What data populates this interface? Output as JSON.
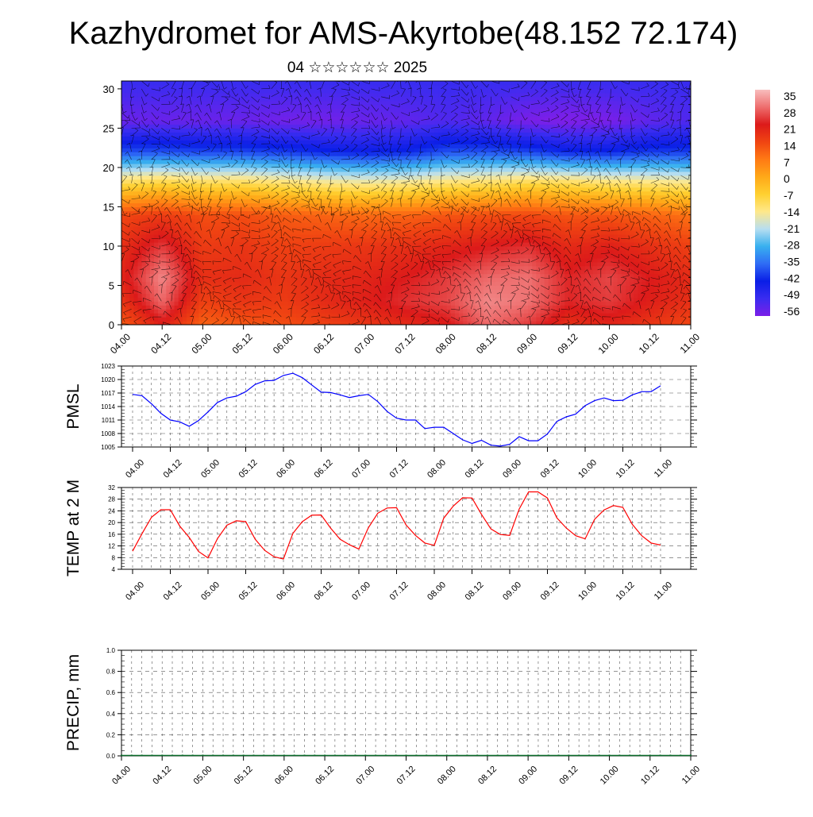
{
  "header": {
    "title": "Kazhydromet for AMS-Akyrtobe(48.152 72.174)",
    "subtitle": "04 ☆☆☆☆☆☆ 2025"
  },
  "chart_data": [
    {
      "type": "heatmap",
      "name": "vertical-section",
      "title": "Kazhydromet for AMS-Akyrtobe(48.152 72.174)",
      "subtitle": "04 ☆☆☆☆☆☆ 2025",
      "x_ticks": [
        "04.00",
        "04.12",
        "05.00",
        "05.12",
        "06.00",
        "06.12",
        "07.00",
        "07.12",
        "08.00",
        "08.12",
        "09.00",
        "09.12",
        "10.00",
        "10.12",
        "11.00"
      ],
      "y_ticks": [
        0,
        5,
        10,
        15,
        20,
        25,
        30
      ],
      "ylim": [
        0,
        31
      ],
      "colorbar": {
        "labels": [
          "35",
          "28",
          "21",
          "14",
          "7",
          "0",
          "-7",
          "-14",
          "-21",
          "-28",
          "-35",
          "-42",
          "-49",
          "-56"
        ],
        "range": [
          -60,
          38
        ],
        "colors": [
          "#7b1fe8",
          "#3a2cf0",
          "#0a1ee6",
          "#2f6cf5",
          "#38b0ef",
          "#b7def0",
          "#ffe88a",
          "#ffd030",
          "#ffa818",
          "#ff7a14",
          "#f04412",
          "#dc1a1a",
          "#ee6e6e",
          "#f8bdbd"
        ]
      },
      "columns": [
        {
          "x": 0.0,
          "p": [
            12,
            18,
            21,
            19,
            15,
            -10,
            -40,
            -58,
            -52
          ]
        },
        {
          "x": 0.5,
          "p": [
            22,
            30,
            33,
            26,
            17,
            -8,
            -40,
            -58,
            -52
          ]
        },
        {
          "x": 1.0,
          "p": [
            11,
            16,
            19,
            17,
            14,
            -10,
            -41,
            -58,
            -52
          ]
        },
        {
          "x": 1.5,
          "p": [
            13,
            18,
            20,
            18,
            14,
            -10,
            -41,
            -58,
            -52
          ]
        },
        {
          "x": 2.0,
          "p": [
            14,
            17,
            18,
            16,
            12,
            -12,
            -42,
            -59,
            -52
          ]
        },
        {
          "x": 2.5,
          "p": [
            16,
            20,
            20,
            17,
            11,
            -14,
            -44,
            -59,
            -52
          ]
        },
        {
          "x": 3.0,
          "p": [
            18,
            22,
            21,
            18,
            10,
            -15,
            -45,
            -58,
            -52
          ]
        },
        {
          "x": 3.5,
          "p": [
            20,
            25,
            23,
            19,
            11,
            -14,
            -44,
            -57,
            -52
          ]
        },
        {
          "x": 4.0,
          "p": [
            22,
            27,
            26,
            21,
            13,
            -12,
            -40,
            -55,
            -52
          ]
        },
        {
          "x": 4.5,
          "p": [
            30,
            33,
            30,
            23,
            14,
            -11,
            -40,
            -57,
            -52
          ]
        },
        {
          "x": 5.0,
          "p": [
            26,
            31,
            31,
            25,
            15,
            -9,
            -41,
            -60,
            -52
          ]
        },
        {
          "x": 5.5,
          "p": [
            19,
            24,
            24,
            20,
            13,
            -10,
            -44,
            -61,
            -52
          ]
        },
        {
          "x": 6.0,
          "p": [
            21,
            26,
            27,
            22,
            13,
            -12,
            -44,
            -60,
            -52
          ]
        },
        {
          "x": 6.5,
          "p": [
            18,
            22,
            23,
            19,
            11,
            -13,
            -42,
            -57,
            -52
          ]
        },
        {
          "x": 7.0,
          "p": [
            15,
            19,
            20,
            16,
            9,
            -14,
            -42,
            -55,
            -52
          ]
        }
      ]
    },
    {
      "type": "line",
      "name": "pmsl",
      "ylabel": "PMSL",
      "yticks": [
        1005,
        1008,
        1011,
        1014,
        1017,
        1020,
        1023
      ],
      "ylim": [
        1005,
        1023
      ],
      "x_ticks": [
        "04.00",
        "04.12",
        "05.00",
        "05.12",
        "06.00",
        "06.12",
        "07.00",
        "07.12",
        "08.00",
        "08.12",
        "09.00",
        "09.12",
        "10.00",
        "10.12",
        "11.00"
      ],
      "color": "#0000ff",
      "series": [
        {
          "x": [
            0,
            0.125,
            0.25,
            0.375,
            0.5,
            0.625,
            0.75,
            0.875,
            1,
            1.125,
            1.25,
            1.375,
            1.5,
            1.625,
            1.75,
            1.875,
            2,
            2.125,
            2.25,
            2.375,
            2.5,
            2.625,
            2.75,
            2.875,
            3,
            3.125,
            3.25,
            3.375,
            3.5,
            3.625,
            3.75,
            3.875,
            4,
            4.125,
            4.25,
            4.375,
            4.5,
            4.625,
            4.75,
            4.875,
            5,
            5.125,
            5.25,
            5.375,
            5.5,
            5.625,
            5.75,
            5.875,
            6,
            6.125,
            6.25,
            6.375,
            6.5,
            6.625,
            6.75,
            6.875,
            7
          ],
          "values": [
            1016.7,
            1016.4,
            1014.6,
            1012.5,
            1011.0,
            1010.6,
            1009.6,
            1010.9,
            1012.8,
            1014.9,
            1015.9,
            1016.3,
            1017.3,
            1018.9,
            1019.7,
            1019.8,
            1020.9,
            1021.4,
            1020.4,
            1018.8,
            1017.2,
            1017.1,
            1016.6,
            1016.0,
            1016.4,
            1016.7,
            1015.1,
            1012.9,
            1011.4,
            1011.0,
            1011.0,
            1009.1,
            1009.4,
            1009.4,
            1008.0,
            1006.6,
            1005.8,
            1006.5,
            1005.4,
            1005.2,
            1005.6,
            1007.3,
            1006.4,
            1006.4,
            1007.9,
            1010.7,
            1011.7,
            1012.3,
            1014.2,
            1015.3,
            1015.9,
            1015.3,
            1015.4,
            1016.6,
            1017.3,
            1017.3,
            1018.6
          ]
        }
      ]
    },
    {
      "type": "line",
      "name": "temp-2m",
      "ylabel": "TEMP at 2 M",
      "yticks": [
        4,
        8,
        12,
        16,
        20,
        24,
        28,
        32
      ],
      "ylim": [
        4,
        32
      ],
      "x_ticks": [
        "04.00",
        "04.12",
        "05.00",
        "05.12",
        "06.00",
        "06.12",
        "07.00",
        "07.12",
        "08.00",
        "08.12",
        "09.00",
        "09.12",
        "10.00",
        "10.12",
        "11.00"
      ],
      "color": "#ff0000",
      "series": [
        {
          "x": [
            0,
            0.125,
            0.25,
            0.375,
            0.5,
            0.625,
            0.75,
            0.875,
            1,
            1.125,
            1.25,
            1.375,
            1.5,
            1.625,
            1.75,
            1.875,
            2,
            2.125,
            2.25,
            2.375,
            2.5,
            2.625,
            2.75,
            2.875,
            3,
            3.125,
            3.25,
            3.375,
            3.5,
            3.625,
            3.75,
            3.875,
            4,
            4.125,
            4.25,
            4.375,
            4.5,
            4.625,
            4.75,
            4.875,
            5,
            5.125,
            5.25,
            5.375,
            5.5,
            5.625,
            5.75,
            5.875,
            6,
            6.125,
            6.25,
            6.375,
            6.5,
            6.625,
            6.75,
            6.875,
            7
          ],
          "values": [
            10.2,
            16.2,
            21.8,
            24.4,
            24.4,
            18.8,
            14.9,
            10.1,
            7.9,
            14.5,
            19.1,
            20.6,
            20.3,
            14.3,
            10.5,
            8.3,
            7.5,
            16.3,
            20.3,
            22.5,
            22.6,
            18.1,
            14.3,
            12.4,
            10.9,
            18.2,
            23.2,
            25.0,
            25.1,
            19.2,
            15.6,
            13.0,
            12.2,
            21.5,
            25.6,
            28.5,
            28.4,
            22.8,
            17.8,
            15.9,
            15.6,
            24.6,
            30.5,
            30.5,
            28.4,
            21.6,
            18.1,
            15.5,
            14.4,
            21.1,
            24.3,
            25.8,
            25.2,
            19.4,
            15.5,
            13.0,
            12.3
          ]
        }
      ]
    },
    {
      "type": "bar",
      "name": "precip",
      "ylabel": "PRECIP, mm",
      "yticks": [
        "0.0",
        "0.2",
        "0.4",
        "0.6",
        "0.8",
        "1.0"
      ],
      "ylim": [
        0,
        1
      ],
      "x_ticks": [
        "04.00",
        "04.12",
        "05.00",
        "05.12",
        "06.00",
        "06.12",
        "07.00",
        "07.12",
        "08.00",
        "08.12",
        "09.00",
        "09.12",
        "10.00",
        "10.12",
        "11.00"
      ],
      "values": [
        0,
        0,
        0,
        0,
        0,
        0,
        0,
        0,
        0,
        0,
        0,
        0,
        0,
        0,
        0,
        0,
        0,
        0,
        0,
        0,
        0,
        0,
        0,
        0,
        0,
        0,
        0,
        0,
        0,
        0,
        0,
        0,
        0,
        0,
        0,
        0,
        0,
        0,
        0,
        0,
        0,
        0,
        0,
        0,
        0,
        0,
        0,
        0,
        0,
        0,
        0,
        0,
        0,
        0,
        0,
        0,
        0
      ]
    }
  ]
}
